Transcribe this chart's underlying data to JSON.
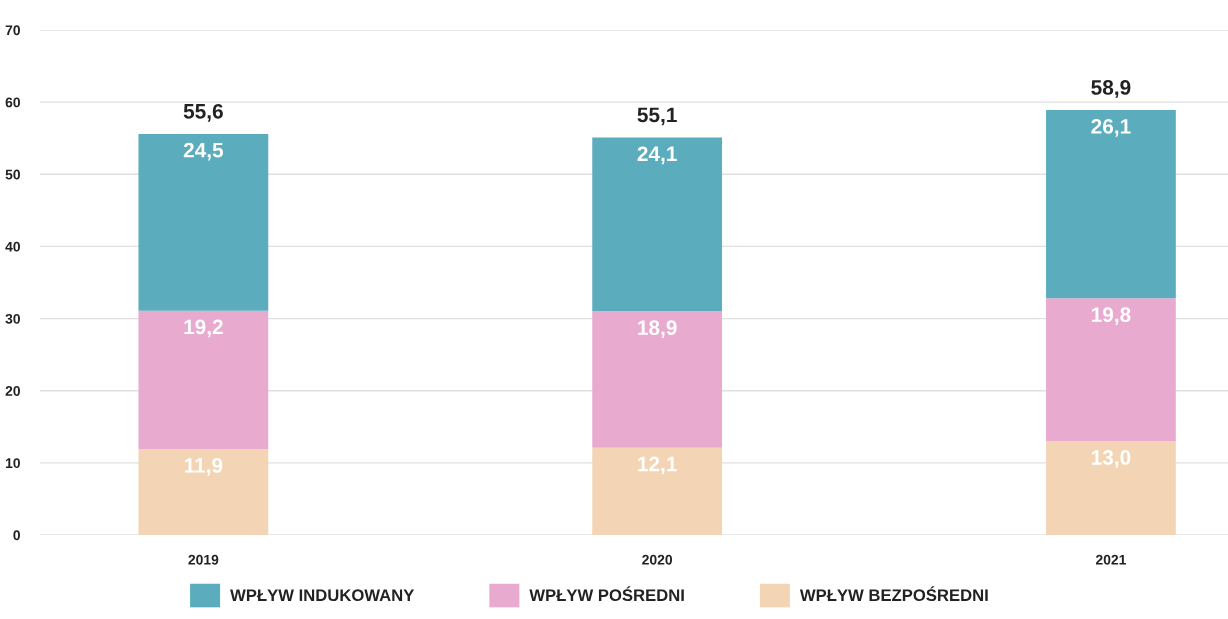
{
  "chart_data": {
    "type": "bar",
    "stacked": true,
    "categories": [
      "2019",
      "2020",
      "2021"
    ],
    "series": [
      {
        "name": "WPŁYW BEZPOŚREDNI",
        "color": "#f3d5b5",
        "values": [
          11.9,
          12.1,
          13.0
        ],
        "value_labels": [
          "11,9",
          "12,1",
          "13,0"
        ]
      },
      {
        "name": "WPŁYW POŚREDNI",
        "color": "#e8abcf",
        "values": [
          19.2,
          18.9,
          19.8
        ],
        "value_labels": [
          "19,2",
          "18,9",
          "19,8"
        ]
      },
      {
        "name": "WPŁYW INDUKOWANY",
        "color": "#5badbd",
        "values": [
          24.5,
          24.1,
          26.1
        ],
        "value_labels": [
          "24,5",
          "24,1",
          "26,1"
        ]
      }
    ],
    "totals": [
      "55,6",
      "55,1",
      "58,9"
    ],
    "ylim": [
      0,
      70
    ],
    "yticks": [
      0,
      10,
      20,
      30,
      40,
      50,
      60,
      70
    ],
    "grid": "y",
    "legend": "bottom"
  }
}
